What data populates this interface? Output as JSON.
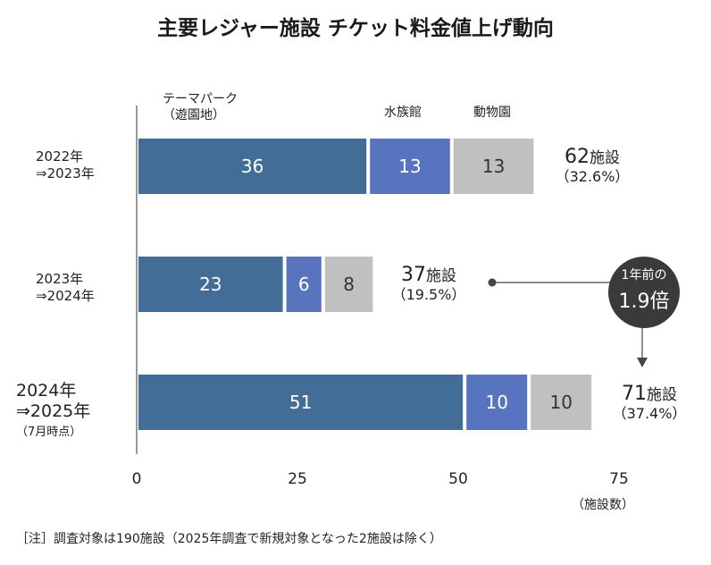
{
  "title": "主要レジャー施設 チケット料金値上げ動向",
  "note": "［注］調査対象は190施設（2025年調査で新規対象となった2施設は除く）",
  "legend": {
    "theme_park_l1": "テーマパーク",
    "theme_park_l2": "（遊園地）",
    "aquarium": "水族館",
    "zoo": "動物園"
  },
  "badge": {
    "line1": "1年前の",
    "line2": "1.9倍"
  },
  "axis": {
    "unit": "（施設数）"
  },
  "colors": {
    "theme_park": "#426d97",
    "aquarium": "#5874bf",
    "zoo": "#c0c0c0"
  },
  "rows": [
    {
      "label_l1": "2022年",
      "label_l2": "⇒2023年",
      "label_l3": "",
      "total_num": "62",
      "total_unit": "施設",
      "total_pct": "（32.6%）"
    },
    {
      "label_l1": "2023年",
      "label_l2": "⇒2024年",
      "label_l3": "",
      "total_num": "37",
      "total_unit": "施設",
      "total_pct": "（19.5%）"
    },
    {
      "label_l1": "2024年",
      "label_l2": "⇒2025年",
      "label_l3": "（7月時点）",
      "total_num": "71",
      "total_unit": "施設",
      "total_pct": "（37.4%）"
    }
  ],
  "chart_data": {
    "type": "bar",
    "orientation": "horizontal",
    "stacked": true,
    "title": "主要レジャー施設 チケット料金値上げ動向",
    "categories": [
      "2022年⇒2023年",
      "2023年⇒2024年",
      "2024年⇒2025年（7月時点）"
    ],
    "series": [
      {
        "name": "テーマパーク（遊園地）",
        "values": [
          36,
          23,
          51
        ]
      },
      {
        "name": "水族館",
        "values": [
          13,
          6,
          10
        ]
      },
      {
        "name": "動物園",
        "values": [
          13,
          8,
          10
        ]
      }
    ],
    "totals": [
      62,
      37,
      71
    ],
    "totals_pct": [
      32.6,
      19.5,
      37.4
    ],
    "xlim": [
      0,
      75
    ],
    "xticks": [
      0,
      25,
      50,
      75
    ],
    "xlabel": "（施設数）",
    "grid": false
  }
}
